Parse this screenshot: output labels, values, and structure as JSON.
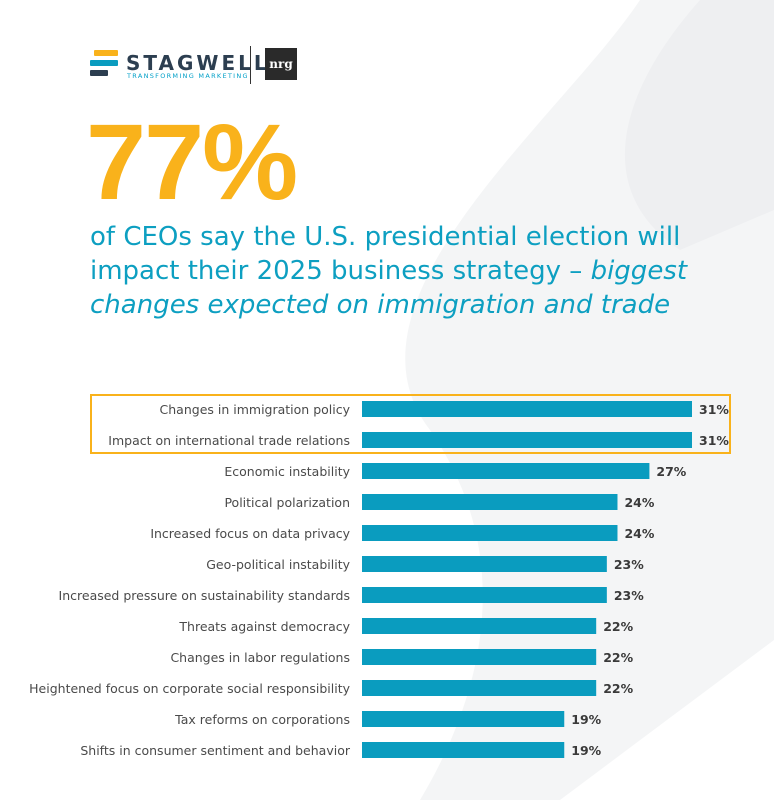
{
  "brand": {
    "stagwell_name": "STAGWELL",
    "stagwell_tagline": "TRANSFORMING MARKETING",
    "partner_logo": "nrg"
  },
  "headline": {
    "stat": "77%",
    "text_plain": "of CEOs say the U.S. presidential election will impact their 2025 business strategy – ",
    "text_emphasis": "biggest changes expected on immigration and trade"
  },
  "colors": {
    "accent": "#f9b21b",
    "bar": "#0a9cbf",
    "headline": "#0d9fc1",
    "label": "#4a4a4a",
    "value": "#3a3a3a"
  },
  "chart_data": {
    "type": "bar",
    "orientation": "horizontal",
    "title": "",
    "xlabel": "",
    "ylabel": "",
    "xlim": [
      0,
      31
    ],
    "highlighted": [
      "Changes in immigration policy",
      "Impact on international trade relations"
    ],
    "categories": [
      "Changes in immigration policy",
      "Impact on international trade relations",
      "Economic instability",
      "Political polarization",
      "Increased focus on data privacy",
      "Geo-political instability",
      "Increased pressure on sustainability standards",
      "Threats against democracy",
      "Changes in labor regulations",
      "Heightened focus on corporate social responsibility",
      "Tax reforms on corporations",
      "Shifts in consumer sentiment and behavior"
    ],
    "values": [
      31,
      31,
      27,
      24,
      24,
      23,
      23,
      22,
      22,
      22,
      19,
      19
    ],
    "value_labels": [
      "31%",
      "31%",
      "27%",
      "24%",
      "24%",
      "23%",
      "23%",
      "22%",
      "22%",
      "22%",
      "19%",
      "19%"
    ]
  }
}
